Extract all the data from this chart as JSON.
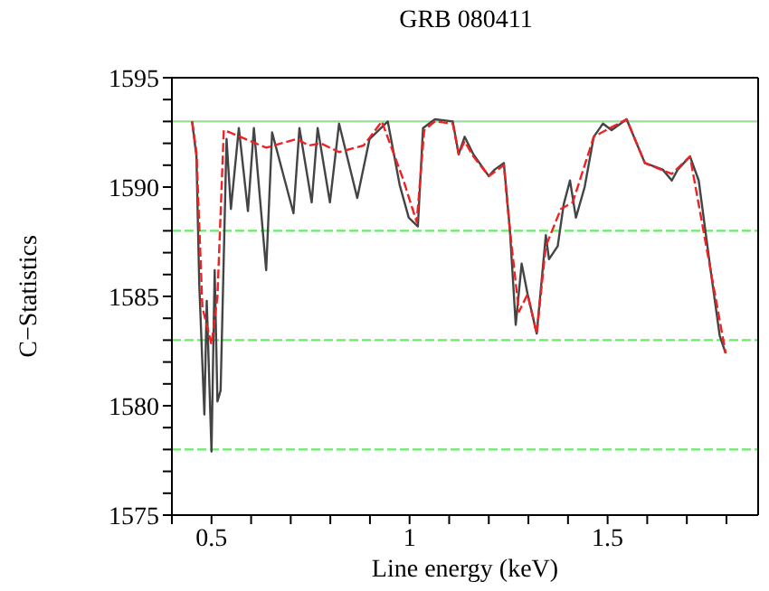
{
  "chart_data": {
    "type": "line",
    "title": "GRB 080411",
    "xlabel": "Line energy (keV)",
    "ylabel": "C−Statistics",
    "xlim": [
      0.4,
      1.88
    ],
    "xticks": [
      {
        "value": 0.4,
        "label": null
      },
      0.5,
      {
        "value": 0.6,
        "label": null
      },
      {
        "value": 0.7,
        "label": null
      },
      {
        "value": 0.8,
        "label": null
      },
      {
        "value": 0.9,
        "label": null
      },
      1,
      {
        "value": 1.1,
        "label": null
      },
      {
        "value": 1.2,
        "label": null
      },
      {
        "value": 1.3,
        "label": null
      },
      {
        "value": 1.4,
        "label": null
      },
      1.5,
      {
        "value": 1.6,
        "label": null
      },
      {
        "value": 1.7,
        "label": null
      },
      {
        "value": 1.8,
        "label": null
      }
    ],
    "ylim": [
      1575,
      1595
    ],
    "yticks": [
      1575,
      {
        "value": 1576,
        "label": null
      },
      {
        "value": 1577,
        "label": null
      },
      {
        "value": 1578,
        "label": null
      },
      {
        "value": 1579,
        "label": null
      },
      1580,
      {
        "value": 1581,
        "label": null
      },
      {
        "value": 1582,
        "label": null
      },
      {
        "value": 1583,
        "label": null
      },
      {
        "value": 1584,
        "label": null
      },
      1585,
      {
        "value": 1586,
        "label": null
      },
      {
        "value": 1587,
        "label": null
      },
      {
        "value": 1588,
        "label": null
      },
      {
        "value": 1589,
        "label": null
      },
      1590,
      {
        "value": 1591,
        "label": null
      },
      {
        "value": 1592,
        "label": null
      },
      {
        "value": 1593,
        "label": null
      },
      {
        "value": 1594,
        "label": null
      },
      1595
    ],
    "marker": "none",
    "ref_lines": [
      {
        "axis": "y",
        "value": 1593,
        "color": "#99dd99",
        "line_style": "solid"
      },
      {
        "axis": "y",
        "value": 1588,
        "color": "#66ee66",
        "line_style": "dashed"
      },
      {
        "axis": "y",
        "value": 1583,
        "color": "#66ee66",
        "line_style": "dashed"
      },
      {
        "axis": "y",
        "value": 1578,
        "color": "#66ee66",
        "line_style": "dashed"
      }
    ],
    "series": [
      {
        "color": "#444444",
        "line_style": "solid",
        "x": [
          0.451,
          0.462,
          0.469,
          0.482,
          0.488,
          0.5,
          0.508,
          0.515,
          0.523,
          0.538,
          0.549,
          0.569,
          0.592,
          0.607,
          0.638,
          0.653,
          0.707,
          0.722,
          0.753,
          0.768,
          0.799,
          0.822,
          0.868,
          0.899,
          0.945,
          0.975,
          0.998,
          1.021,
          1.034,
          1.064,
          1.109,
          1.124,
          1.139,
          1.161,
          1.2,
          1.215,
          1.238,
          1.253,
          1.268,
          1.283,
          1.298,
          1.321,
          1.344,
          1.352,
          1.374,
          1.389,
          1.405,
          1.42,
          1.442,
          1.465,
          1.488,
          1.51,
          1.548,
          1.594,
          1.639,
          1.662,
          1.677,
          1.708,
          1.73,
          1.76,
          1.783,
          1.798
        ],
        "values": [
          1593,
          1591.4,
          1585.6,
          1579.6,
          1584.8,
          1577.9,
          1586.2,
          1580.2,
          1580.7,
          1592.2,
          1589,
          1592.7,
          1588.9,
          1592.7,
          1586.2,
          1592.5,
          1588.8,
          1592.7,
          1589.3,
          1592.7,
          1589.3,
          1592.9,
          1589.5,
          1592.2,
          1593,
          1590.1,
          1588.6,
          1588.2,
          1592.7,
          1593.1,
          1593,
          1591.5,
          1592.3,
          1591.5,
          1590.5,
          1590.8,
          1591.1,
          1588.1,
          1583.7,
          1586.5,
          1585.1,
          1583.3,
          1587.8,
          1586.7,
          1587.3,
          1589.2,
          1590.3,
          1588.6,
          1590,
          1592.3,
          1592.9,
          1592.6,
          1593.1,
          1591.1,
          1590.8,
          1590.3,
          1590.8,
          1591.4,
          1590.3,
          1586.2,
          1583.2,
          1582.4
        ]
      },
      {
        "color": "#ee2222",
        "line_style": "dashed",
        "x": [
          0.451,
          0.462,
          0.477,
          0.5,
          0.515,
          0.531,
          0.546,
          0.638,
          0.715,
          0.745,
          0.776,
          0.822,
          0.884,
          0.93,
          0.983,
          1.018,
          1.037,
          1.064,
          1.109,
          1.124,
          1.139,
          1.161,
          1.2,
          1.238,
          1.253,
          1.276,
          1.298,
          1.321,
          1.344,
          1.382,
          1.412,
          1.465,
          1.548,
          1.594,
          1.662,
          1.708,
          1.76,
          1.798
        ],
        "values": [
          1593,
          1591.6,
          1584.5,
          1582.8,
          1585,
          1592.6,
          1592.5,
          1591.8,
          1592.2,
          1591.9,
          1592,
          1591.6,
          1591.9,
          1593,
          1590.4,
          1588.4,
          1592.6,
          1593,
          1592.9,
          1591.5,
          1592.1,
          1591.4,
          1590.5,
          1591,
          1588.1,
          1584.3,
          1585.1,
          1583.3,
          1587.3,
          1589,
          1589.3,
          1592.3,
          1593.1,
          1591.1,
          1590.6,
          1591.4,
          1586.2,
          1582.4
        ]
      }
    ]
  }
}
